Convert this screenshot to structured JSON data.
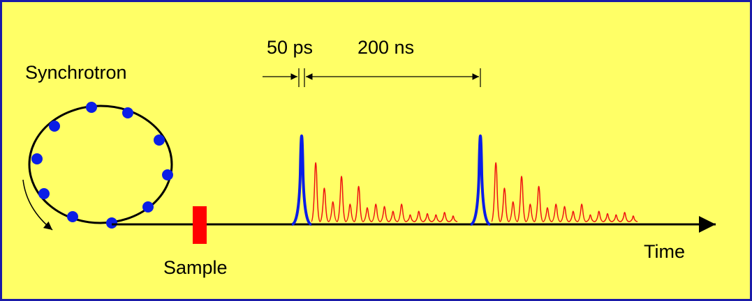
{
  "labels": {
    "pulse_width": "50 ps",
    "pulse_spacing": "200 ns",
    "source": "Synchrotron",
    "axis": "Time",
    "sample": "Sample"
  }
}
